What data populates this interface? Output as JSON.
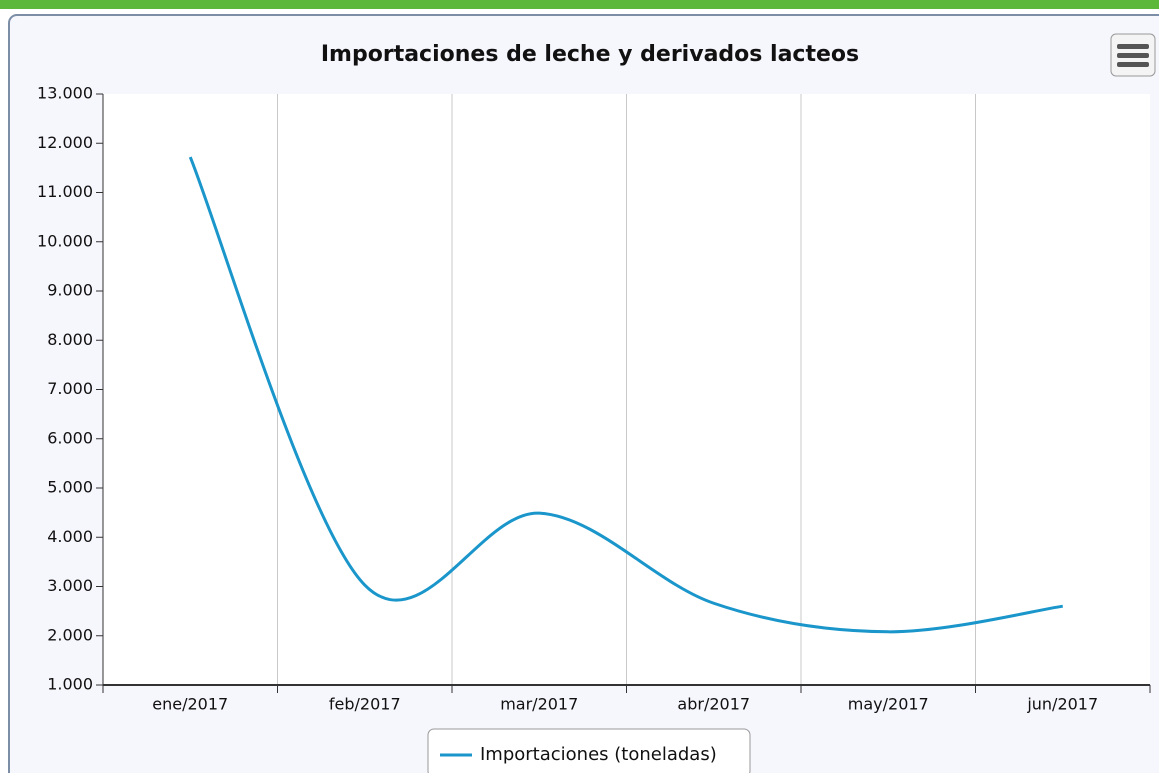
{
  "chart_data": {
    "type": "line",
    "title": "Importaciones de leche y derivados lacteos",
    "categories": [
      "ene/2017",
      "feb/2017",
      "mar/2017",
      "abr/2017",
      "may/2017",
      "jun/2017"
    ],
    "series": [
      {
        "name": "Importaciones (toneladas)",
        "color": "#1a96cb",
        "values": [
          11720,
          3030,
          4490,
          2660,
          2080,
          2600
        ]
      }
    ],
    "ylim": [
      1000,
      13000
    ],
    "yticks": [
      {
        "value": 1000,
        "label": "1.000"
      },
      {
        "value": 2000,
        "label": "2.000"
      },
      {
        "value": 3000,
        "label": "3.000"
      },
      {
        "value": 4000,
        "label": "4.000"
      },
      {
        "value": 5000,
        "label": "5.000"
      },
      {
        "value": 6000,
        "label": "6.000"
      },
      {
        "value": 7000,
        "label": "7.000"
      },
      {
        "value": 8000,
        "label": "8.000"
      },
      {
        "value": 9000,
        "label": "9.000"
      },
      {
        "value": 10000,
        "label": "10.000"
      },
      {
        "value": 11000,
        "label": "11.000"
      },
      {
        "value": 12000,
        "label": "12.000"
      },
      {
        "value": 13000,
        "label": "13.000"
      }
    ],
    "grid": true
  }
}
